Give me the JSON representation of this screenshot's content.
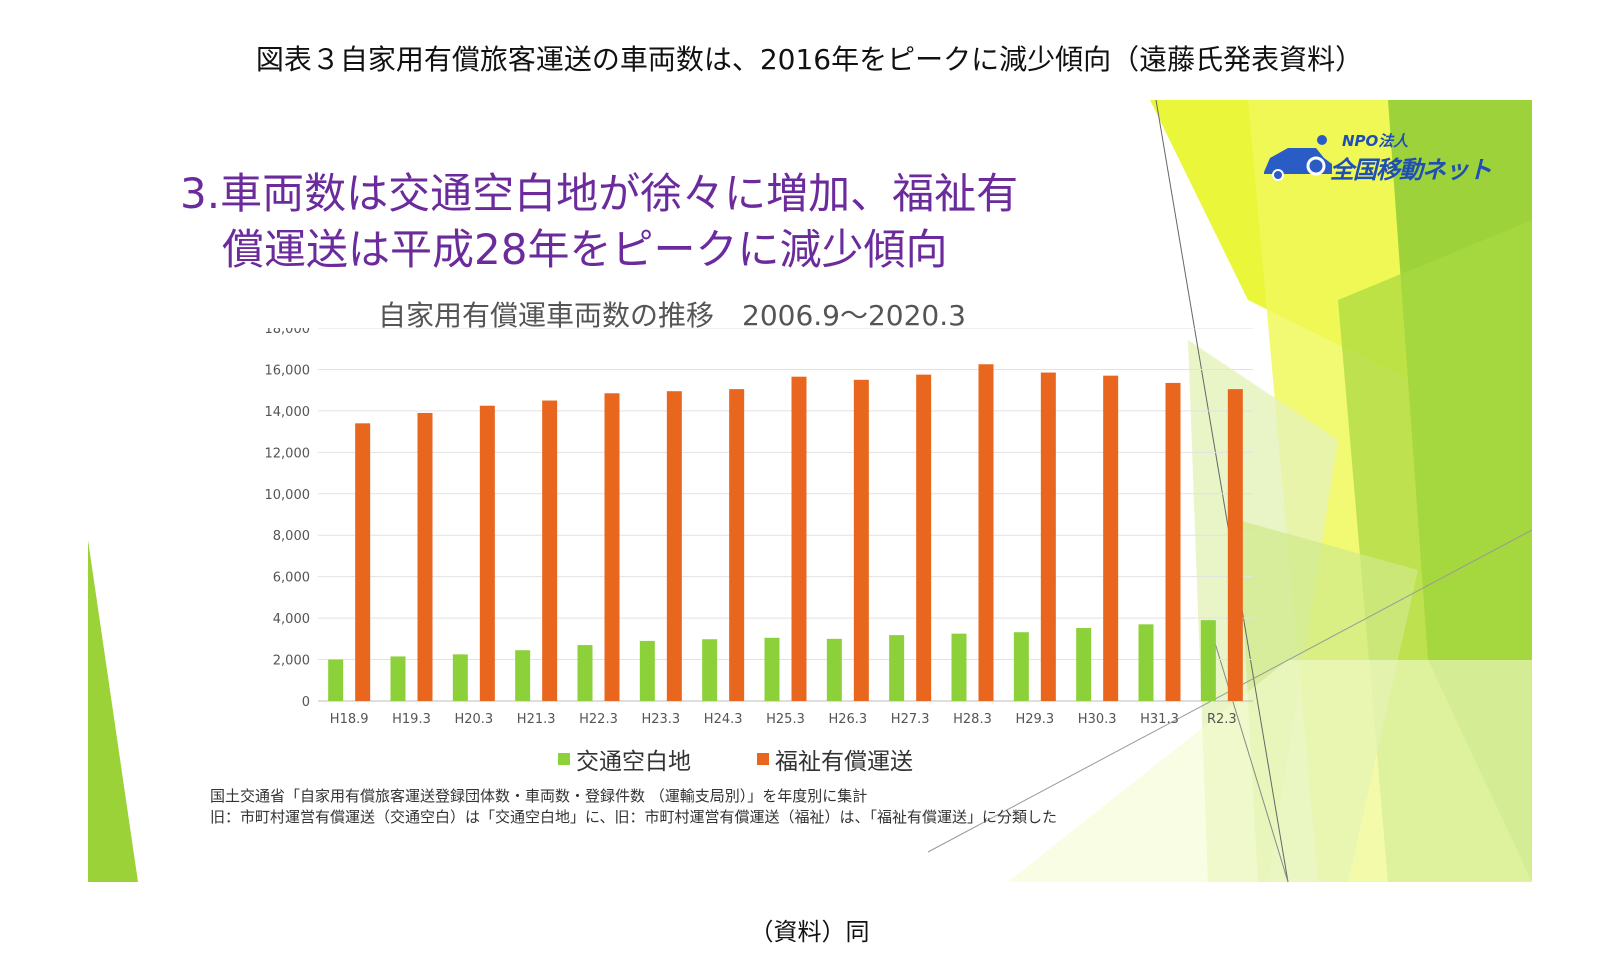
{
  "figure_caption": "図表３自家用有償旅客運送の車両数は、2016年をピークに減少傾向（遠藤氏発表資料）",
  "slide": {
    "heading_line1": "3.車両数は交通空白地が徐々に増加、福祉有",
    "heading_line2": "償運送は平成28年をピークに減少傾向",
    "logo_small": "NPO法人",
    "logo_main": "全国移動ネット",
    "source_line1": "国土交通省「自家用有償旅客運送登録団体数・車両数・登録件数 （運輸支局別）」を年度別に集計",
    "source_line2": "旧：市町村運営有償運送（交通空白）は「交通空白地」に、旧：市町村運営有償運送（福祉）は、「福祉有償運送」に分類した"
  },
  "bottom_caption": "（資料）同",
  "colors": {
    "heading": "#6b2b9c",
    "series_green": "#8cd03a",
    "series_orange": "#e8661e",
    "logo": "#1f4fb4"
  },
  "chart_data": {
    "type": "bar",
    "title": "自家用有償運車両数の推移　2006.9～2020.3",
    "xlabel": "",
    "ylabel": "",
    "ylim": [
      0,
      18000
    ],
    "yticks": [
      "18,000",
      "16,000",
      "14,000",
      "12,000",
      "10,000",
      "8,000",
      "6,000",
      "4,000",
      "2,000",
      "0"
    ],
    "categories": [
      "H18.9",
      "H19.3",
      "H20.3",
      "H21.3",
      "H22.3",
      "H23.3",
      "H24.3",
      "H25.3",
      "H26.3",
      "H27.3",
      "H28.3",
      "H29.3",
      "H30.3",
      "H31.3",
      "R2.3"
    ],
    "series": [
      {
        "name": "交通空白地",
        "values": [
          2000,
          2150,
          2250,
          2450,
          2700,
          2900,
          2980,
          3050,
          3000,
          3180,
          3250,
          3320,
          3520,
          3700,
          3900
        ]
      },
      {
        "name": "福祉有償運送",
        "values": [
          13400,
          13900,
          14250,
          14500,
          14850,
          14950,
          15050,
          15650,
          15500,
          15750,
          16250,
          15850,
          15700,
          15350,
          15050
        ]
      }
    ],
    "legend_position": "bottom",
    "grid": true
  }
}
